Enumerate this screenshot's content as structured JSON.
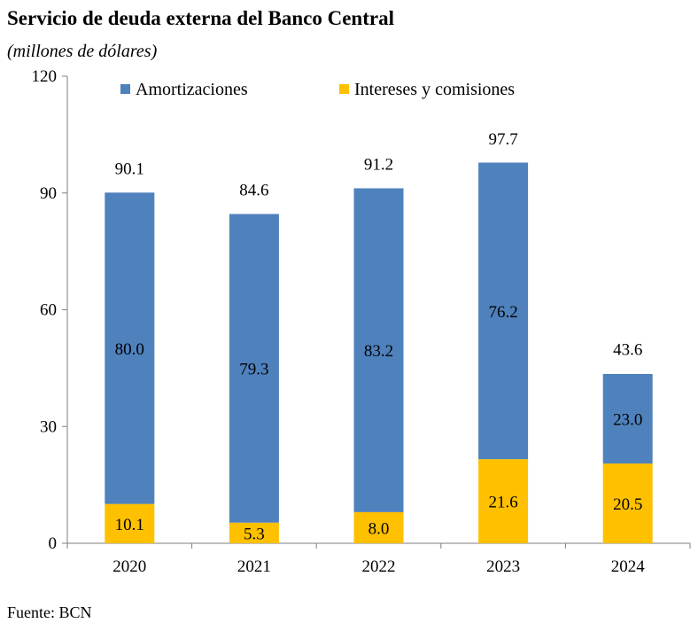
{
  "title": "Servicio de deuda externa del Banco Central",
  "subtitle": "(millones de dólares)",
  "source": "Fuente: BCN",
  "chart_data": {
    "type": "bar",
    "stacked": true,
    "categories": [
      "2020",
      "2021",
      "2022",
      "2023",
      "2024"
    ],
    "series": [
      {
        "name": "Intereses y comisiones",
        "values": [
          10.1,
          5.3,
          8.0,
          21.6,
          20.5
        ],
        "color": "#FFC000"
      },
      {
        "name": "Amortizaciones",
        "values": [
          80.0,
          79.3,
          83.2,
          76.2,
          23.0
        ],
        "color": "#4F81BD"
      }
    ],
    "totals": [
      90.1,
      84.6,
      91.2,
      97.7,
      43.6
    ],
    "series_labels": [
      [
        "10.1",
        "5.3",
        "8.0",
        "21.6",
        "20.5"
      ],
      [
        "80.0",
        "79.3",
        "83.2",
        "76.2",
        "23.0"
      ]
    ],
    "total_labels": [
      "90.1",
      "84.6",
      "91.2",
      "97.7",
      "43.6"
    ],
    "legend_order": [
      "Amortizaciones",
      "Intereses y comisiones"
    ],
    "yticks": [
      "0",
      "30",
      "60",
      "90",
      "120"
    ],
    "ylim": [
      0,
      120
    ],
    "xlabel": "",
    "ylabel": "",
    "grid": false,
    "legend_position": "top"
  }
}
